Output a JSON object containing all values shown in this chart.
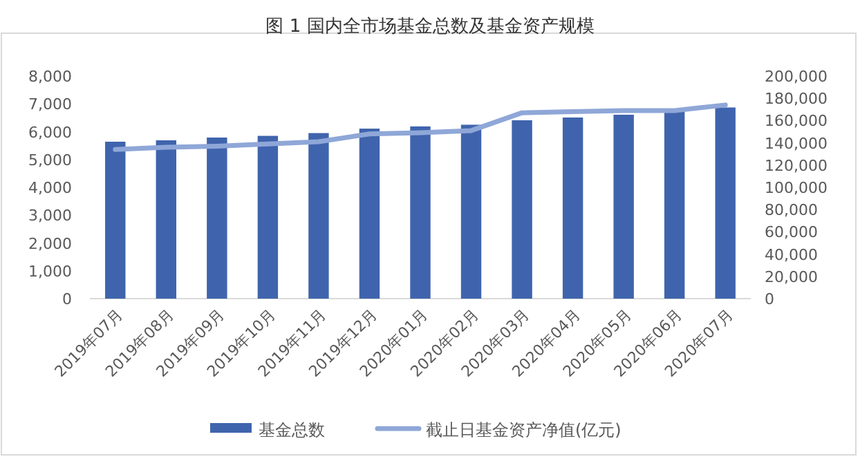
{
  "chart_data": {
    "type": "bar",
    "title": "图 1 国内全市场基金总数及基金资产规模",
    "categories": [
      "2019年07月",
      "2019年08月",
      "2019年09月",
      "2019年10月",
      "2019年11月",
      "2019年12月",
      "2020年01月",
      "2020年02月",
      "2020年03月",
      "2020年04月",
      "2020年05月",
      "2020年06月",
      "2020年07月"
    ],
    "series": [
      {
        "name": "基金总数",
        "color": "#3f64ad",
        "values": [
          5640,
          5690,
          5790,
          5850,
          5950,
          6110,
          6190,
          6250,
          6410,
          6510,
          6610,
          6730,
          6870
        ]
      },
      {
        "name": "截止日基金资产净值(亿元)",
        "type": "line",
        "axis": "y2",
        "color": "#8fa7d8",
        "values": [
          134000,
          136000,
          137000,
          139000,
          141000,
          148000,
          149000,
          151000,
          167000,
          168000,
          169000,
          169000,
          174000
        ]
      }
    ],
    "ylim": [
      0,
      8000
    ],
    "yticks": [
      {
        "value": 0,
        "label": "0"
      },
      {
        "value": 1000,
        "label": "1,000"
      },
      {
        "value": 2000,
        "label": "2,000"
      },
      {
        "value": 3000,
        "label": "3,000"
      },
      {
        "value": 4000,
        "label": "4,000"
      },
      {
        "value": 5000,
        "label": "5,000"
      },
      {
        "value": 6000,
        "label": "6,000"
      },
      {
        "value": 7000,
        "label": "7,000"
      },
      {
        "value": 8000,
        "label": "8,000"
      }
    ],
    "y2lim": [
      0,
      200000
    ],
    "y2ticks": [
      {
        "value": 0,
        "label": "0"
      },
      {
        "value": 20000,
        "label": "20,000"
      },
      {
        "value": 40000,
        "label": "40,000"
      },
      {
        "value": 60000,
        "label": "60,000"
      },
      {
        "value": 80000,
        "label": "80,000"
      },
      {
        "value": 100000,
        "label": "100,000"
      },
      {
        "value": 120000,
        "label": "120,000"
      },
      {
        "value": 140000,
        "label": "140,000"
      },
      {
        "value": 160000,
        "label": "160,000"
      },
      {
        "value": 180000,
        "label": "180,000"
      },
      {
        "value": 200000,
        "label": "200,000"
      }
    ],
    "grid": false,
    "legend": "bottom",
    "marker": "none",
    "line_style": "solid"
  }
}
